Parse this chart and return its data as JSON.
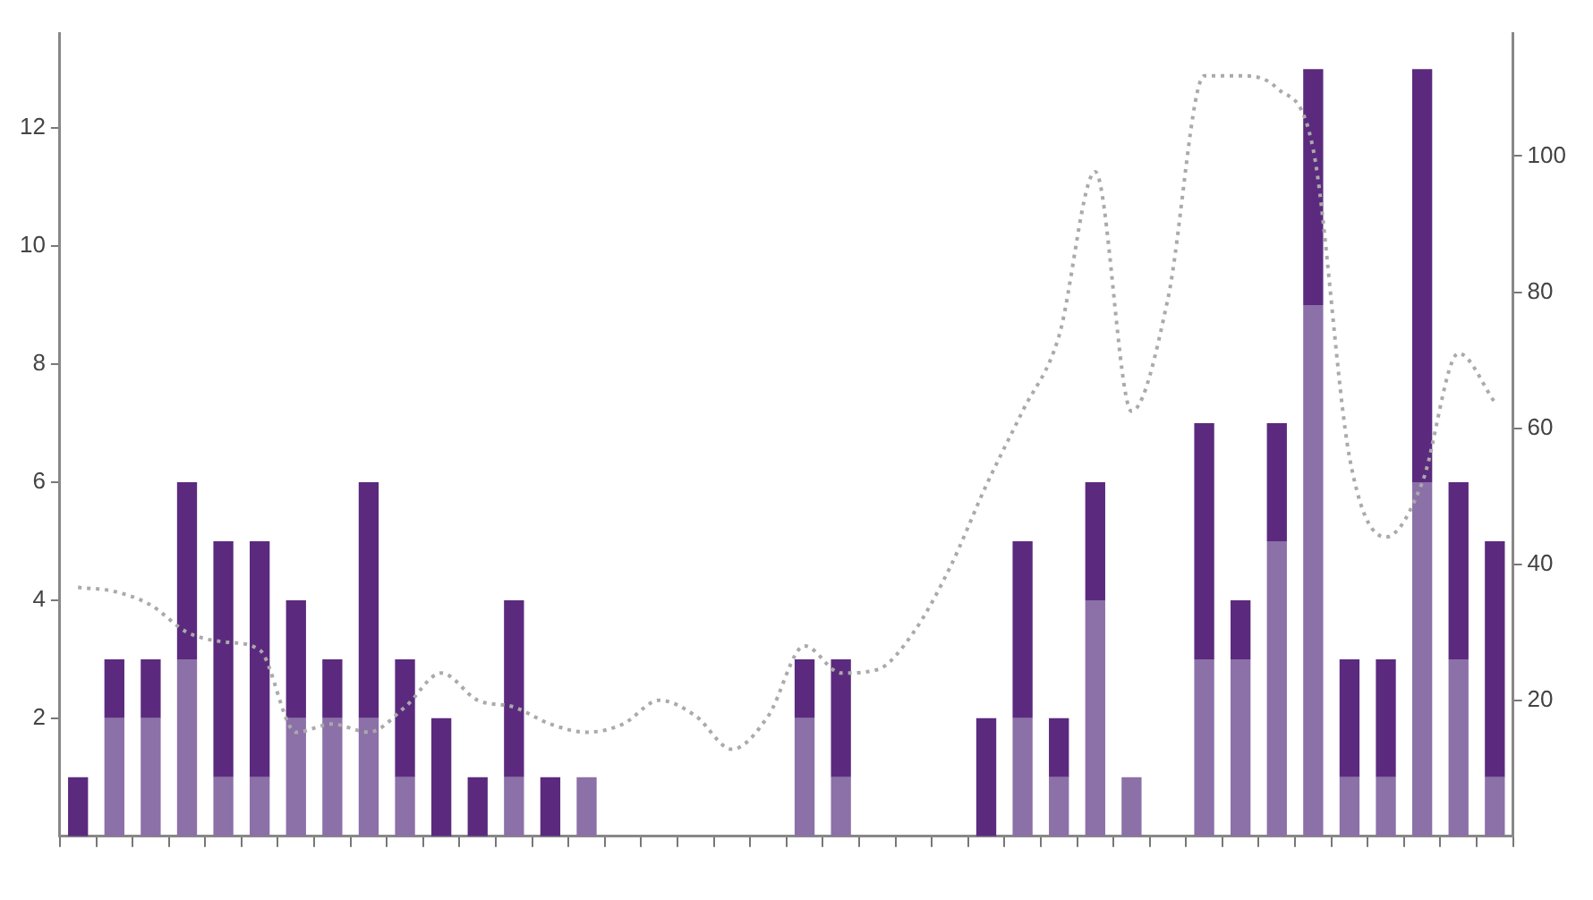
{
  "chart_data": {
    "type": "bar",
    "stacked": true,
    "categories": [
      null,
      null,
      null,
      null,
      null,
      null,
      null,
      null,
      null,
      null,
      null,
      null,
      null,
      null,
      null,
      null,
      null,
      null,
      null,
      null,
      null,
      null,
      null,
      null,
      null,
      null,
      null,
      null,
      null,
      null,
      null,
      null,
      null,
      null,
      null,
      null,
      null,
      null,
      null,
      null
    ],
    "series": [
      {
        "color": "#8c70a8",
        "values": [
          0,
          2,
          2,
          3,
          1,
          1,
          2,
          2,
          2,
          1,
          0,
          0,
          1,
          0,
          1,
          0,
          0,
          0,
          0,
          0,
          2,
          1,
          0,
          0,
          0,
          0,
          2,
          1,
          4,
          1,
          0,
          3,
          3,
          5,
          9,
          1,
          1,
          6,
          3,
          1
        ]
      },
      {
        "color": "#5b2a7e",
        "values": [
          1,
          1,
          1,
          3,
          4,
          4,
          2,
          1,
          4,
          2,
          2,
          1,
          3,
          1,
          0,
          0,
          0,
          0,
          0,
          0,
          1,
          2,
          0,
          0,
          0,
          2,
          3,
          1,
          2,
          0,
          0,
          4,
          1,
          2,
          4,
          2,
          2,
          7,
          3,
          4
        ]
      },
      {
        "type": "line",
        "axis": "y2",
        "color": "#aaaaaa",
        "line_style": "dotted",
        "marker": "none",
        "values": [
          36.6,
          36,
          34,
          30,
          28.6,
          27.4,
          15.3,
          16.5,
          15.3,
          19,
          24,
          20,
          19,
          16.5,
          15.3,
          16.5,
          20,
          17.7,
          12.8,
          17.7,
          28,
          24,
          24.5,
          30,
          39.5,
          51.6,
          62.5,
          73.5,
          97.7,
          62.5,
          79,
          111.8,
          111.8,
          110,
          101,
          55.7,
          44,
          52,
          71,
          63.8
        ]
      }
    ],
    "ylim": [
      0,
      13.6
    ],
    "yticks": [
      2,
      4,
      6,
      8,
      10,
      12
    ],
    "y2lim": [
      0,
      118
    ],
    "y2ticks": [
      20,
      40,
      60,
      80,
      100
    ],
    "grid": false,
    "legend": false
  }
}
